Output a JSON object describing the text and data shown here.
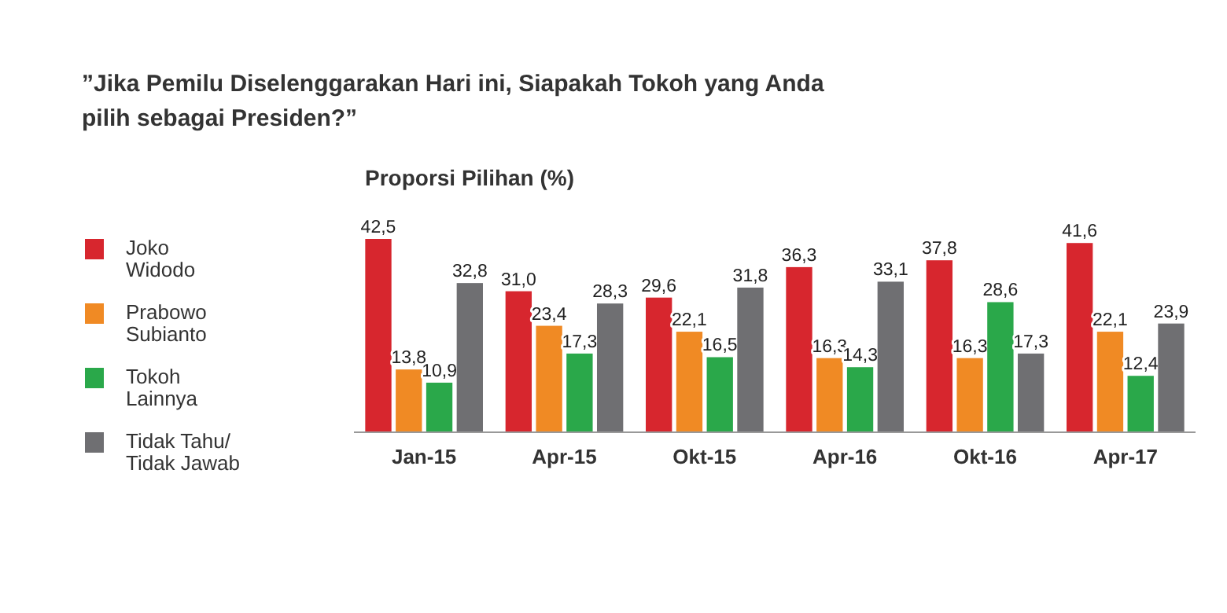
{
  "chart_data": {
    "type": "bar",
    "title": "”Jika Pemilu Diselenggarakan Hari ini,  Siapakah Tokoh yang Anda pilih sebagai Presiden?”",
    "subtitle": "Proporsi Pilihan (%)",
    "categories": [
      "Jan-15",
      "Apr-15",
      "Okt-15",
      "Apr-16",
      "Okt-16",
      "Apr-17"
    ],
    "series": [
      {
        "name": "Joko Widodo",
        "color": "#d7262e",
        "values": [
          42.5,
          31.0,
          29.6,
          36.3,
          37.8,
          41.6
        ],
        "value_labels": [
          "42,5",
          "31,0",
          "29,6",
          "36,3",
          "37,8",
          "41,6"
        ]
      },
      {
        "name": "Prabowo Subianto",
        "color": "#f08a24",
        "values": [
          13.8,
          23.4,
          22.1,
          16.3,
          16.3,
          22.1
        ],
        "value_labels": [
          "13,8",
          "23,4",
          "22,1",
          "16,3",
          "16,3",
          "22,1"
        ]
      },
      {
        "name": "Tokoh Lainnya",
        "color": "#2aa84a",
        "values": [
          10.9,
          17.3,
          16.5,
          14.3,
          28.6,
          12.4
        ],
        "value_labels": [
          "10,9",
          "17,3",
          "16,5",
          "14,3",
          "28,6",
          "12,4"
        ]
      },
      {
        "name": "Tidak Tahu/ Tidak Jawab",
        "color": "#6f6f72",
        "values": [
          32.8,
          28.3,
          31.8,
          33.1,
          17.3,
          23.9
        ],
        "value_labels": [
          "32,8",
          "28,3",
          "31,8",
          "33,1",
          "17,3",
          "23,9"
        ]
      }
    ],
    "legend": "left",
    "grid": false
  }
}
